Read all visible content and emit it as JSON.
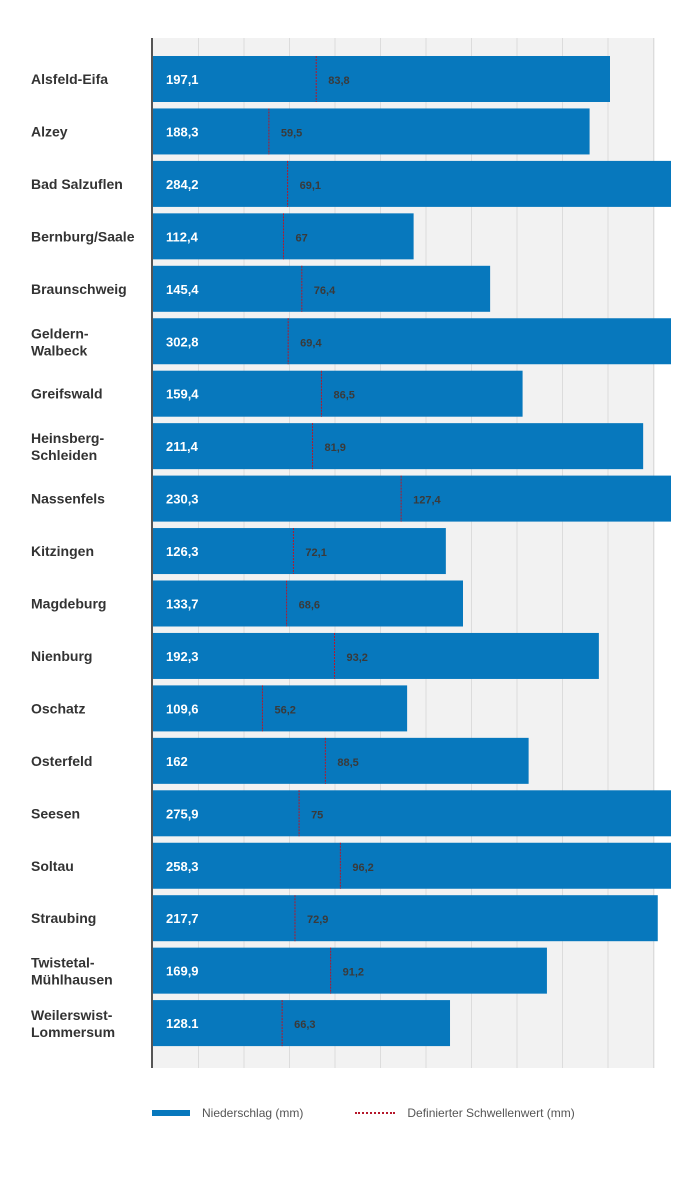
{
  "chart_data": {
    "type": "bar",
    "orientation": "horizontal",
    "categories": [
      "Alsfeld-Eifa",
      "Alzey",
      "Bad Salzuflen",
      "Bernburg/Saale",
      "Braunschweig",
      "Geldern-Walbeck",
      "Greifswald",
      "Heinsberg-Schleiden",
      "Nassenfels",
      "Kitzingen",
      "Magdeburg",
      "Nienburg",
      "Oschatz",
      "Osterfeld",
      "Seesen",
      "Soltau",
      "Straubing",
      "Twistetal-Mühlhausen",
      "Weilerswist-Lommersum"
    ],
    "series": [
      {
        "name": "Niederschlag (mm)",
        "values": [
          197.1,
          188.3,
          284.2,
          112.4,
          145.4,
          302.8,
          159.4,
          211.4,
          230.3,
          126.3,
          133.7,
          192.3,
          109.6,
          162,
          275.9,
          258.3,
          217.7,
          169.9,
          128.1
        ],
        "labels": [
          "197,1",
          "188,3",
          "284,2",
          "112,4",
          "145,4",
          "302,8",
          "159,4",
          "211,4",
          "230,3",
          "126,3",
          "133,7",
          "192,3",
          "109,6",
          "162",
          "275,9",
          "258,3",
          "217,7",
          "169,9",
          "128.1"
        ],
        "color": "#0778bd"
      },
      {
        "name": "Definierter Schwellenwert (mm)",
        "values": [
          83.8,
          59.5,
          69.1,
          67,
          76.4,
          69.4,
          86.5,
          81.9,
          127.4,
          72.1,
          68.6,
          93.2,
          56.2,
          88.5,
          75,
          96.2,
          72.9,
          91.2,
          66.3
        ],
        "labels": [
          "83,8",
          "59,5",
          "69,1",
          "67",
          "76,4",
          "69,4",
          "86,5",
          "81,9",
          "127,4",
          "72,1",
          "68,6",
          "93,2",
          "56,2",
          "88,5",
          "75",
          "96,2",
          "72,9",
          "91,2",
          "66,3"
        ],
        "color": "#b5172b"
      }
    ],
    "bar_scale_max": 220,
    "threshold_scale_max": 220,
    "grid": true,
    "legend_position": "bottom"
  }
}
